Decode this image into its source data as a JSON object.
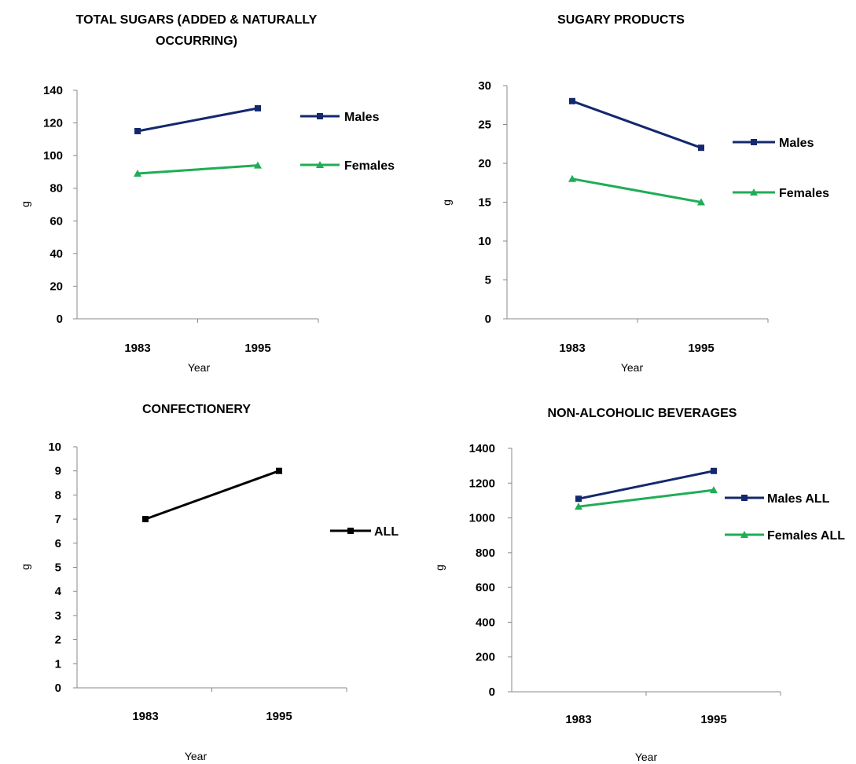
{
  "chart_data": [
    {
      "type": "line",
      "title": "TOTAL SUGARS (ADDED & NATURALLY OCCURRING)",
      "title_lines": [
        "TOTAL SUGARS (ADDED & NATURALLY",
        "OCCURRING)"
      ],
      "xlabel": "Year",
      "ylabel": "g",
      "categories": [
        "1983",
        "1995"
      ],
      "ylim": [
        0,
        140
      ],
      "yticks": [
        0,
        20,
        40,
        60,
        80,
        100,
        120,
        140
      ],
      "grid": false,
      "legend_position": "right",
      "series": [
        {
          "name": "Males",
          "values": [
            115,
            129
          ],
          "color": "#14286e",
          "marker": "square"
        },
        {
          "name": "Females",
          "values": [
            89,
            94
          ],
          "color": "#1fad55",
          "marker": "triangle"
        }
      ]
    },
    {
      "type": "line",
      "title": "SUGARY PRODUCTS",
      "title_lines": [
        "SUGARY PRODUCTS"
      ],
      "xlabel": "Year",
      "ylabel": "g",
      "categories": [
        "1983",
        "1995"
      ],
      "ylim": [
        0,
        30
      ],
      "yticks": [
        0,
        5,
        10,
        15,
        20,
        25,
        30
      ],
      "grid": false,
      "legend_position": "right",
      "series": [
        {
          "name": "Males",
          "values": [
            28,
            22
          ],
          "color": "#14286e",
          "marker": "square"
        },
        {
          "name": "Females",
          "values": [
            18,
            15
          ],
          "color": "#1fad55",
          "marker": "triangle"
        }
      ]
    },
    {
      "type": "line",
      "title": "CONFECTIONERY",
      "title_lines": [
        "CONFECTIONERY"
      ],
      "xlabel": "Year",
      "ylabel": "g",
      "categories": [
        "1983",
        "1995"
      ],
      "ylim": [
        0,
        10
      ],
      "yticks": [
        0,
        1,
        2,
        3,
        4,
        5,
        6,
        7,
        8,
        9,
        10
      ],
      "grid": false,
      "legend_position": "right",
      "series": [
        {
          "name": "ALL",
          "values": [
            7,
            9
          ],
          "color": "#000000",
          "marker": "square"
        }
      ]
    },
    {
      "type": "line",
      "title": "NON-ALCOHOLIC BEVERAGES",
      "title_lines": [
        "NON-ALCOHOLIC BEVERAGES"
      ],
      "xlabel": "Year",
      "ylabel": "g",
      "categories": [
        "1983",
        "1995"
      ],
      "ylim": [
        0,
        1400
      ],
      "yticks": [
        0,
        200,
        400,
        600,
        800,
        1000,
        1200,
        1400
      ],
      "grid": false,
      "legend_position": "right",
      "series": [
        {
          "name": "Males ALL",
          "values": [
            1110,
            1270
          ],
          "color": "#14286e",
          "marker": "square"
        },
        {
          "name": "Females ALL",
          "values": [
            1065,
            1160
          ],
          "color": "#1fad55",
          "marker": "triangle"
        }
      ]
    }
  ]
}
